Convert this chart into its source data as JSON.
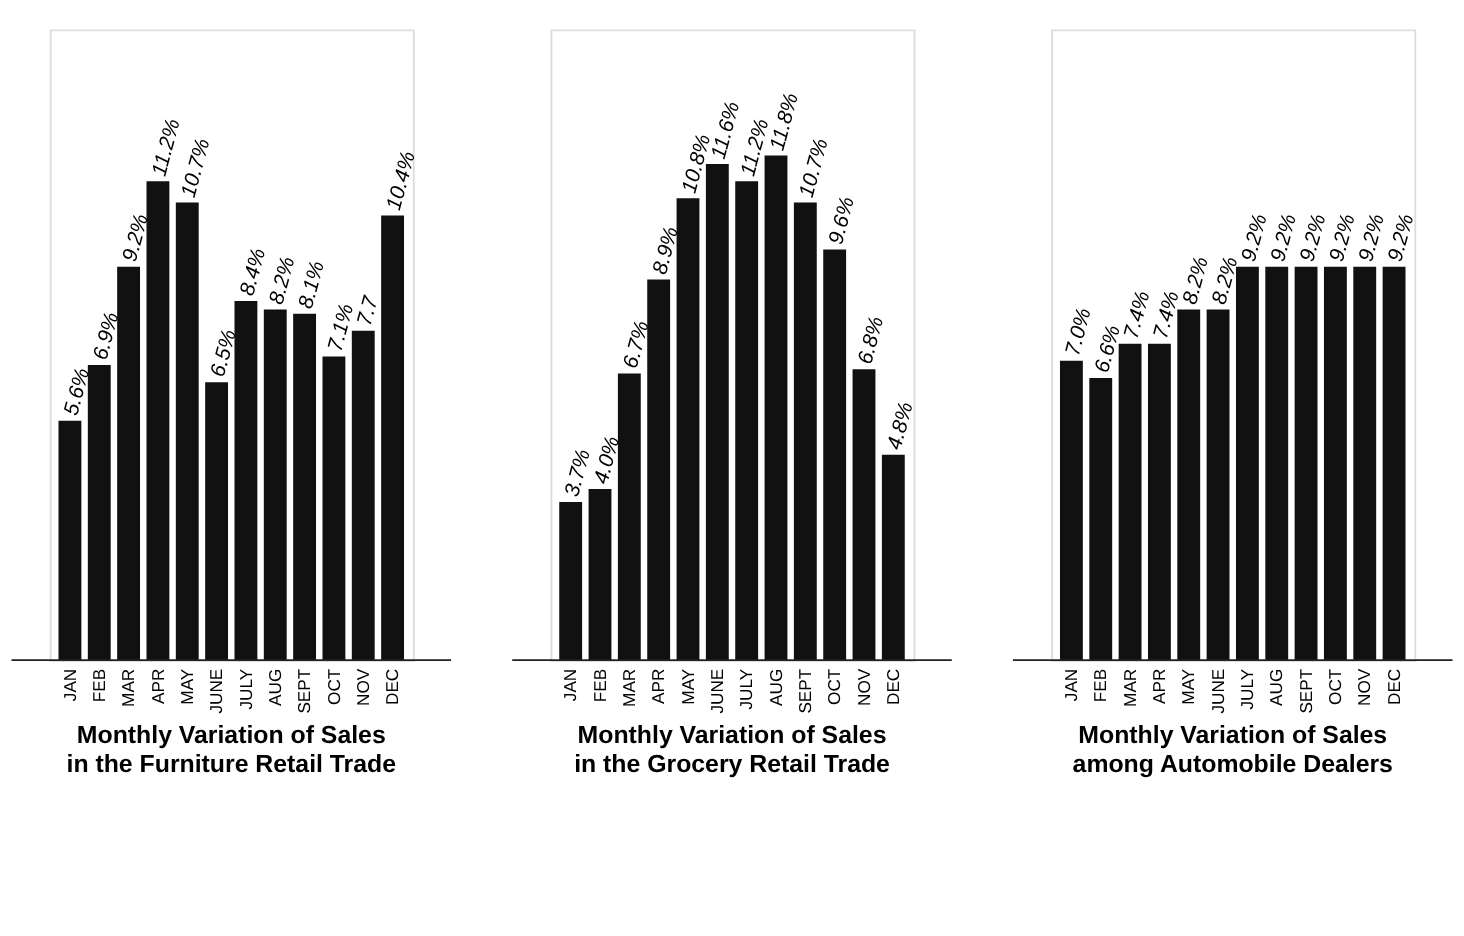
{
  "chart_data": [
    {
      "type": "bar",
      "title": "Monthly Variation of Sales\nin the Furniture Retail Trade",
      "categories": [
        "JAN",
        "FEB",
        "MAR",
        "APR",
        "MAY",
        "JUNE",
        "JULY",
        "AUG",
        "SEPT",
        "OCT",
        "NOV",
        "DEC"
      ],
      "values": [
        5.6,
        6.9,
        9.2,
        11.2,
        10.7,
        6.5,
        8.4,
        8.2,
        8.1,
        7.1,
        7.7,
        10.4
      ],
      "value_labels": [
        "5.6%",
        "6.9%",
        "9.2%",
        "11.2%",
        "10.7%",
        "6.5%",
        "8.4%",
        "8.2%",
        "8.1%",
        "7.1%",
        "7.7",
        "10.4%"
      ],
      "color": "#111111"
    },
    {
      "type": "bar",
      "title": "Monthly Variation of Sales\nin the Grocery Retail Trade",
      "categories": [
        "JAN",
        "FEB",
        "MAR",
        "APR",
        "MAY",
        "JUNE",
        "JULY",
        "AUG",
        "SEPT",
        "OCT",
        "NOV",
        "DEC"
      ],
      "values": [
        3.7,
        4.0,
        6.7,
        8.9,
        10.8,
        11.6,
        11.2,
        11.8,
        10.7,
        9.6,
        6.8,
        4.8
      ],
      "value_labels": [
        "3.7%",
        "4.0%",
        "6.7%",
        "8.9%",
        "10.8%",
        "11.6%",
        "11.2%",
        "11.8%",
        "10.7%",
        "9.6%",
        "6.8%",
        "4.8%"
      ],
      "color": "#111111"
    },
    {
      "type": "bar",
      "title": "Monthly Variation of Sales\namong Automobile Dealers",
      "categories": [
        "JAN",
        "FEB",
        "MAR",
        "APR",
        "MAY",
        "JUNE",
        "JULY",
        "AUG",
        "SEPT",
        "OCT",
        "NOV",
        "DEC"
      ],
      "values": [
        7.0,
        6.6,
        7.4,
        7.4,
        8.2,
        8.2,
        9.2,
        9.2,
        9.2,
        9.2,
        9.2,
        9.2
      ],
      "value_labels": [
        "7.0%",
        "6.6%",
        "7.4%",
        "7.4%",
        "8.2%",
        "8.2%",
        "9.2%",
        "9.2%",
        "9.2%",
        "9.2%",
        "9.2%",
        "9.2%"
      ],
      "color": "#111111"
    }
  ]
}
